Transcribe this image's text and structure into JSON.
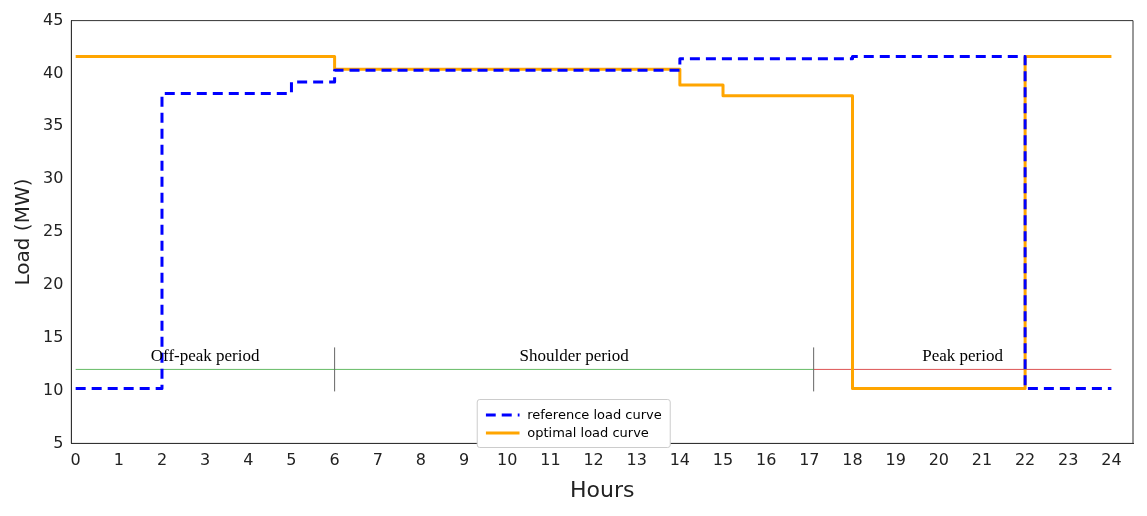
{
  "chart_data": {
    "type": "step",
    "xlabel": "Hours",
    "ylabel": "Load (MW)",
    "xlim": [
      -0.1,
      24.5
    ],
    "xticks": [
      0,
      1,
      2,
      3,
      4,
      5,
      6,
      7,
      8,
      9,
      10,
      11,
      12,
      13,
      14,
      15,
      16,
      17,
      18,
      19,
      20,
      21,
      22,
      23,
      24
    ],
    "ylim": [
      5,
      45
    ],
    "yticks": [
      5,
      10,
      15,
      20,
      25,
      30,
      35,
      40,
      45
    ],
    "grid": false,
    "legend": "bottom",
    "x": [
      0,
      2,
      5,
      6,
      14,
      18,
      22,
      24
    ],
    "series": [
      {
        "name": "reference load curve",
        "color": "#0000ff",
        "line_style": "dashed",
        "values": [
          10.2,
          38.1,
          39.2,
          40.3,
          41.4,
          41.6,
          10.2,
          10.2
        ]
      },
      {
        "name": "optimal load curve",
        "color": "#ffa500",
        "line_style": "solid",
        "values": [
          41.6,
          40.4,
          38.9,
          37.9,
          10.2,
          41.6,
          41.6
        ],
        "x": [
          0,
          6,
          14,
          15,
          18,
          22,
          24
        ]
      },
      {
        "type": "line",
        "color": "#66bb66",
        "x": [
          0,
          17.1
        ],
        "values": [
          12,
          12
        ]
      },
      {
        "type": "line",
        "color": "#dd5555",
        "x": [
          17.1,
          24
        ],
        "values": [
          12,
          12
        ]
      }
    ],
    "ref_lines": [
      {
        "axis": "x",
        "value": 6,
        "color": "#666666"
      },
      {
        "axis": "x",
        "value": 17.1,
        "color": "#666666"
      }
    ],
    "annotations": [
      {
        "text": "Off-peak period",
        "x": 3,
        "y": 12
      },
      {
        "text": "Shoulder period",
        "x": 11.55,
        "y": 12
      },
      {
        "text": "Peak period",
        "x": 20.55,
        "y": 12
      }
    ]
  }
}
